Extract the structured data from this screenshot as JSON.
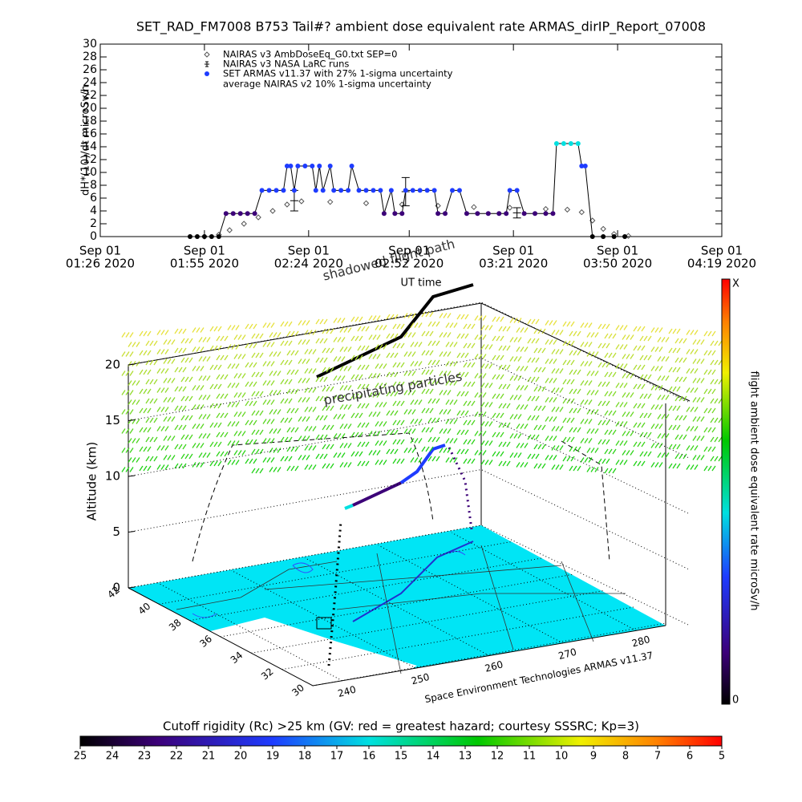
{
  "chart_data": [
    {
      "type": "line",
      "title": "SET_RAD_FM7008  B753 Tail#? ambient dose equivalent rate ARMAS_dirIP_Report_07008",
      "y_label": "dH*(10)/dt microSv/h",
      "x_label": "UT time",
      "xlim": [
        "2020-09-01 01:26",
        "2020-09-01 04:19"
      ],
      "xticks": [
        {
          "value": "2020-09-01 01:26",
          "label": [
            "Sep 01",
            "01:26 2020"
          ]
        },
        {
          "value": "2020-09-01 01:55",
          "label": [
            "Sep 01",
            "01:55 2020"
          ]
        },
        {
          "value": "2020-09-01 02:24",
          "label": [
            "Sep 01",
            "02:24 2020"
          ]
        },
        {
          "value": "2020-09-01 02:52",
          "label": [
            "Sep 01",
            "02:52 2020"
          ]
        },
        {
          "value": "2020-09-01 03:21",
          "label": [
            "Sep 01",
            "03:21 2020"
          ]
        },
        {
          "value": "2020-09-01 03:50",
          "label": [
            "Sep 01",
            "03:50 2020"
          ]
        },
        {
          "value": "2020-09-01 04:19",
          "label": [
            "Sep 01",
            "04:19 2020"
          ]
        }
      ],
      "ylim": [
        0,
        30
      ],
      "yticks": [
        0,
        2,
        4,
        6,
        8,
        10,
        12,
        14,
        16,
        18,
        20,
        22,
        24,
        26,
        28,
        30
      ],
      "legend_note": "average NAIRAS v2 10% 1-sigma uncertainty",
      "series": [
        {
          "name": "NAIRAS v3 AmbDoseEq_G0.txt SEP=0",
          "marker": "diamond",
          "color": "#555555",
          "x": [
            "2020-09-01 01:55",
            "2020-09-01 01:59",
            "2020-09-01 02:02",
            "2020-09-01 02:06",
            "2020-09-01 02:10",
            "2020-09-01 02:14",
            "2020-09-01 02:18",
            "2020-09-01 02:22",
            "2020-09-01 02:30",
            "2020-09-01 02:40",
            "2020-09-01 02:50",
            "2020-09-01 03:00",
            "2020-09-01 03:10",
            "2020-09-01 03:20",
            "2020-09-01 03:30",
            "2020-09-01 03:36",
            "2020-09-01 03:40",
            "2020-09-01 03:43",
            "2020-09-01 03:46",
            "2020-09-01 03:49",
            "2020-09-01 03:53"
          ],
          "values": [
            0,
            0.3,
            1,
            2,
            3,
            4,
            5,
            5.5,
            5.4,
            5.2,
            5,
            4.8,
            4.6,
            4.5,
            4.3,
            4.2,
            3.8,
            2.5,
            1.2,
            0.4,
            0.1
          ]
        },
        {
          "name": "NAIRAS v3 NASA LaRC runs",
          "marker": "errorbar",
          "color": "#000000",
          "x": [
            "2020-09-01 02:20",
            "2020-09-01 02:51",
            "2020-09-01 03:22"
          ],
          "values": [
            5.6,
            7,
            3.7
          ],
          "errors": [
            1.6,
            2.2,
            0.8
          ]
        },
        {
          "name": "SET ARMAS v11.37 with 27% 1-sigma uncertainty",
          "marker": "dot",
          "color": "#1e3cff",
          "x": [
            "2020-09-01 01:51",
            "2020-09-01 01:53",
            "2020-09-01 01:55",
            "2020-09-01 01:57",
            "2020-09-01 01:59",
            "2020-09-01 02:01",
            "2020-09-01 02:03",
            "2020-09-01 02:05",
            "2020-09-01 02:07",
            "2020-09-01 02:09",
            "2020-09-01 02:11",
            "2020-09-01 02:13",
            "2020-09-01 02:15",
            "2020-09-01 02:17",
            "2020-09-01 02:18",
            "2020-09-01 02:19",
            "2020-09-01 02:20",
            "2020-09-01 02:21",
            "2020-09-01 02:23",
            "2020-09-01 02:25",
            "2020-09-01 02:26",
            "2020-09-01 02:27",
            "2020-09-01 02:28",
            "2020-09-01 02:30",
            "2020-09-01 02:31",
            "2020-09-01 02:33",
            "2020-09-01 02:35",
            "2020-09-01 02:36",
            "2020-09-01 02:38",
            "2020-09-01 02:40",
            "2020-09-01 02:42",
            "2020-09-01 02:44",
            "2020-09-01 02:45",
            "2020-09-01 02:47",
            "2020-09-01 02:48",
            "2020-09-01 02:50",
            "2020-09-01 02:51",
            "2020-09-01 02:53",
            "2020-09-01 02:55",
            "2020-09-01 02:57",
            "2020-09-01 02:59",
            "2020-09-01 03:00",
            "2020-09-01 03:02",
            "2020-09-01 03:04",
            "2020-09-01 03:06",
            "2020-09-01 03:08",
            "2020-09-01 03:11",
            "2020-09-01 03:14",
            "2020-09-01 03:17",
            "2020-09-01 03:19",
            "2020-09-01 03:20",
            "2020-09-01 03:22",
            "2020-09-01 03:24",
            "2020-09-01 03:27",
            "2020-09-01 03:30",
            "2020-09-01 03:32",
            "2020-09-01 03:33",
            "2020-09-01 03:35",
            "2020-09-01 03:37",
            "2020-09-01 03:39",
            "2020-09-01 03:40",
            "2020-09-01 03:41",
            "2020-09-01 03:43",
            "2020-09-01 03:46",
            "2020-09-01 03:49",
            "2020-09-01 03:52"
          ],
          "values": [
            0,
            0,
            0,
            0,
            0,
            3.6,
            3.6,
            3.6,
            3.6,
            3.6,
            7.2,
            7.2,
            7.2,
            7.2,
            11,
            11,
            7.2,
            11,
            11,
            11,
            7.2,
            11,
            7.2,
            11,
            7.2,
            7.2,
            7.2,
            11,
            7.2,
            7.2,
            7.2,
            7.2,
            3.6,
            7.2,
            3.6,
            3.6,
            7.2,
            7.2,
            7.2,
            7.2,
            7.2,
            3.6,
            3.6,
            7.2,
            7.2,
            3.6,
            3.6,
            3.6,
            3.6,
            3.6,
            7.2,
            7.2,
            3.6,
            3.6,
            3.6,
            3.6,
            14.5,
            14.5,
            14.5,
            14.5,
            11,
            11,
            0,
            0,
            0,
            0
          ],
          "point_colors": [
            "#000000",
            "#000000",
            "#000000",
            "#000000",
            "#000000",
            "#3c0078",
            "#3c0078",
            "#3c0078",
            "#3c0078",
            "#3c0078",
            "#1e3cff",
            "#1e3cff",
            "#1e3cff",
            "#1e3cff",
            "#1e3cff",
            "#1e3cff",
            "#1e3cff",
            "#1e3cff",
            "#1e3cff",
            "#1e3cff",
            "#1e3cff",
            "#1e3cff",
            "#1e3cff",
            "#1e3cff",
            "#1e3cff",
            "#1e3cff",
            "#1e3cff",
            "#1e3cff",
            "#1e3cff",
            "#1e3cff",
            "#1e3cff",
            "#1e3cff",
            "#3c0078",
            "#1e3cff",
            "#3c0078",
            "#3c0078",
            "#1e3cff",
            "#1e3cff",
            "#1e3cff",
            "#1e3cff",
            "#1e3cff",
            "#3c0078",
            "#3c0078",
            "#1e3cff",
            "#1e3cff",
            "#3c0078",
            "#3c0078",
            "#3c0078",
            "#3c0078",
            "#3c0078",
            "#1e3cff",
            "#1e3cff",
            "#3c0078",
            "#3c0078",
            "#3c0078",
            "#3c0078",
            "#00e0e0",
            "#00e0e0",
            "#00e0e0",
            "#00e0e0",
            "#1e3cff",
            "#1e3cff",
            "#000000",
            "#000000",
            "#000000",
            "#000000"
          ]
        }
      ]
    },
    {
      "type": "scene3d",
      "z_label": "Altitude (km)",
      "zlim": [
        0,
        20
      ],
      "zticks": [
        0,
        5,
        10,
        15,
        20
      ],
      "latlim": [
        42,
        30
      ],
      "lat_ticks": [
        42,
        40,
        38,
        36,
        34,
        32,
        30
      ],
      "lonlim": [
        236,
        284
      ],
      "lon_ticks": [
        240,
        250,
        260,
        270,
        280
      ],
      "annotations": [
        "shadowed flight path",
        "precipitating particles",
        "Space Environment Technologies ARMAS v11.37"
      ]
    },
    {
      "type": "colorbar",
      "label": "flight ambient dose equivalent rate microSv/h",
      "end_labels": [
        "0",
        "X"
      ]
    },
    {
      "type": "colorbar",
      "title": "Cutoff rigidity (Rc) >25 km (GV: red = greatest hazard; courtesy SSSRC; Kp=3)",
      "lim": [
        25,
        5
      ],
      "ticks": [
        25,
        24,
        23,
        22,
        21,
        20,
        19,
        18,
        17,
        16,
        15,
        14,
        13,
        12,
        11,
        10,
        9,
        8,
        7,
        6,
        5
      ]
    }
  ]
}
